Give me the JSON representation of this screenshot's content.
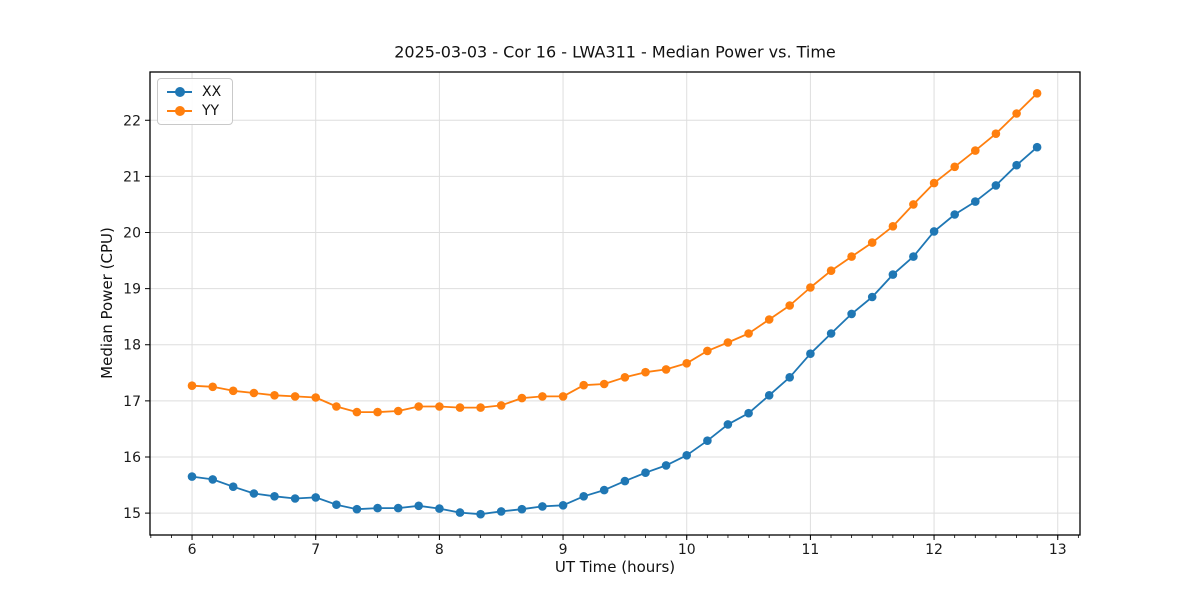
{
  "figure_title": "2025-03-03 - Cor 16 - LWA311 - Median Power vs. Time",
  "chart_data": {
    "type": "line",
    "title": "2025-03-03 - Cor 16 - LWA311 - Median Power vs. Time",
    "xlabel": "UT Time (hours)",
    "ylabel": "Median Power (CPU)",
    "xlim": [
      5.66,
      13.18
    ],
    "ylim": [
      14.61,
      22.86
    ],
    "x_ticks": [
      6,
      7,
      8,
      9,
      10,
      11,
      12,
      13
    ],
    "y_ticks": [
      15,
      16,
      17,
      18,
      19,
      20,
      21,
      22
    ],
    "x_minor_tick_step": 0.166667,
    "grid": true,
    "legend": {
      "position": "upper left",
      "entries": [
        "XX",
        "YY"
      ]
    },
    "x": [
      6.0,
      6.167,
      6.333,
      6.5,
      6.667,
      6.833,
      7.0,
      7.167,
      7.333,
      7.5,
      7.667,
      7.833,
      8.0,
      8.167,
      8.333,
      8.5,
      8.667,
      8.833,
      9.0,
      9.167,
      9.333,
      9.5,
      9.667,
      9.833,
      10.0,
      10.167,
      10.333,
      10.5,
      10.667,
      10.833,
      11.0,
      11.167,
      11.333,
      11.5,
      11.667,
      11.833,
      12.0,
      12.167,
      12.333,
      12.5,
      12.667,
      12.833
    ],
    "series": [
      {
        "name": "XX",
        "color": "#1f77b4",
        "values": [
          15.65,
          15.6,
          15.47,
          15.35,
          15.3,
          15.26,
          15.28,
          15.15,
          15.07,
          15.09,
          15.09,
          15.13,
          15.08,
          15.01,
          14.98,
          15.03,
          15.07,
          15.12,
          15.14,
          15.3,
          15.41,
          15.57,
          15.72,
          15.85,
          16.03,
          16.29,
          16.58,
          16.78,
          17.1,
          17.42,
          17.84,
          18.2,
          18.55,
          18.85,
          19.25,
          19.57,
          20.02,
          20.32,
          20.55,
          20.84,
          21.2,
          21.52
        ]
      },
      {
        "name": "YY",
        "color": "#ff7f0e",
        "values": [
          17.27,
          17.25,
          17.18,
          17.14,
          17.1,
          17.08,
          17.06,
          16.9,
          16.8,
          16.8,
          16.82,
          16.9,
          16.9,
          16.88,
          16.88,
          16.92,
          17.05,
          17.08,
          17.08,
          17.28,
          17.3,
          17.42,
          17.51,
          17.56,
          17.67,
          17.89,
          18.04,
          18.2,
          18.45,
          18.7,
          19.02,
          19.32,
          19.57,
          19.82,
          20.11,
          20.5,
          20.88,
          21.17,
          21.46,
          21.76,
          22.12,
          22.48
        ]
      }
    ]
  },
  "style": {
    "grid_color": "#dedede",
    "spine_color": "#000000",
    "tick_label_color": "#1a1a1a",
    "background": "#ffffff",
    "legend_border": "#c9c9c9"
  }
}
